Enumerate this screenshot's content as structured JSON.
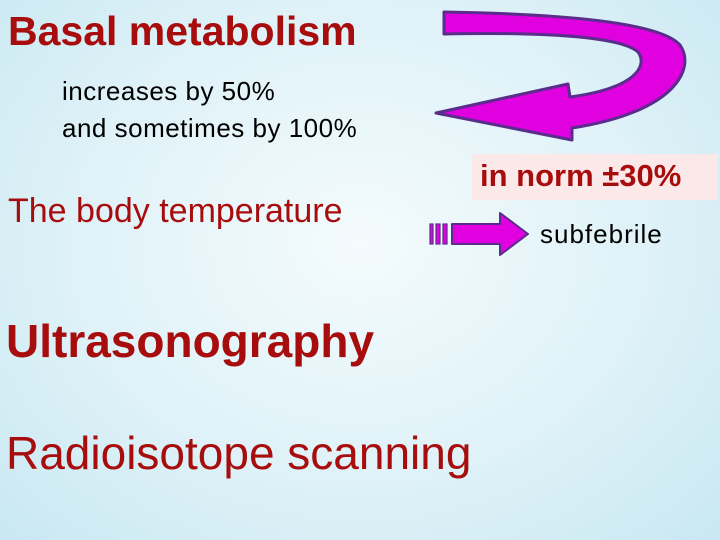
{
  "slide": {
    "title": "Basal metabolism",
    "detail_line_1": "increases by 50%",
    "detail_line_2": "and sometimes by 100%",
    "norm_note": "in norm ±30%",
    "temperature_label": "The body temperature",
    "temperature_value": "subfebrile",
    "item_3": "Ultrasonography",
    "item_4": "Radioisotope scanning"
  },
  "colors": {
    "heading_red": "#a80d0d",
    "arrow_fill": "#e000e0",
    "arrow_stroke": "#5a2d8c",
    "note_bg": "#fbe9ea"
  }
}
